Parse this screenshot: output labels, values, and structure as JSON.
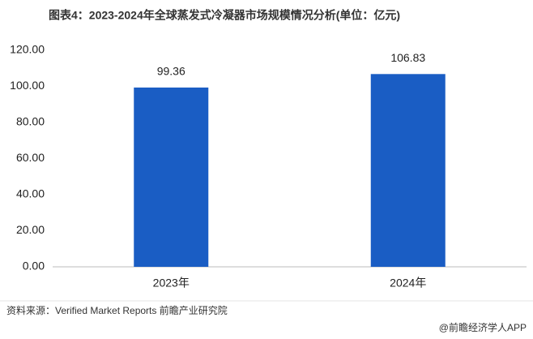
{
  "chart_data": {
    "type": "bar",
    "title": "图表4：2023-2024年全球蒸发式冷凝器市场规模情况分析(单位：亿元)",
    "categories": [
      "2023年",
      "2024年"
    ],
    "values": [
      99.36,
      106.83
    ],
    "color": "#1a5dc4",
    "ylim": [
      0,
      120
    ],
    "yticks": [
      {
        "value": 0,
        "label": "0.00"
      },
      {
        "value": 20,
        "label": "20.00"
      },
      {
        "value": 40,
        "label": "40.00"
      },
      {
        "value": 60,
        "label": "60.00"
      },
      {
        "value": 80,
        "label": "80.00"
      },
      {
        "value": 100,
        "label": "100.00"
      },
      {
        "value": 120,
        "label": "120.00"
      }
    ],
    "grid": false,
    "source": "资料来源：Verified Market Reports 前瞻产业研究院",
    "footer": "@前瞻经济学人APP"
  }
}
